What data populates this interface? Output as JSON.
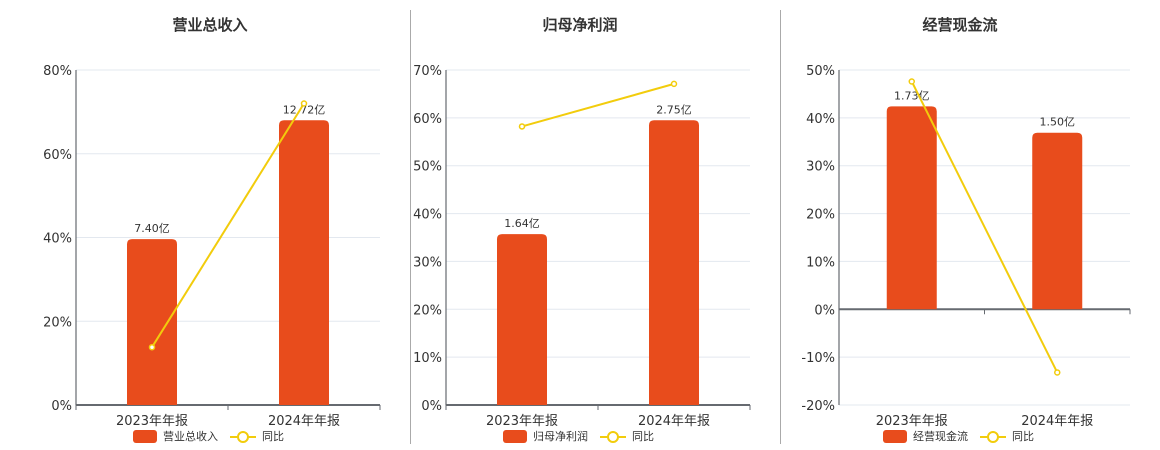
{
  "colors": {
    "bar": "#e84c1c",
    "line": "#f2cc0c",
    "grid": "#e3e8ef",
    "axis": "#666a70",
    "divider": "#aaaaaa"
  },
  "legend": {
    "yoy_label": "同比"
  },
  "categories": [
    "2023年年报",
    "2024年年报"
  ],
  "panels": [
    {
      "title": "营业总收入",
      "legend_bar_label": "营业总收入",
      "yticks": [
        "80%",
        "60%",
        "40%",
        "20%",
        "0%"
      ],
      "bar_labels": [
        "7.40亿",
        "12.72亿"
      ]
    },
    {
      "title": "归母净利润",
      "legend_bar_label": "归母净利润",
      "yticks": [
        "70%",
        "60%",
        "50%",
        "40%",
        "30%",
        "20%",
        "10%",
        "0%"
      ],
      "bar_labels": [
        "1.64亿",
        "2.75亿"
      ]
    },
    {
      "title": "经营现金流",
      "legend_bar_label": "经营现金流",
      "yticks": [
        "50%",
        "40%",
        "30%",
        "20%",
        "10%",
        "0%",
        "-10%",
        "-20%"
      ],
      "bar_labels": [
        "1.73亿",
        "1.50亿"
      ]
    }
  ],
  "chart_data": [
    {
      "type": "bar+line",
      "title": "营业总收入",
      "categories": [
        "2023年年报",
        "2024年年报"
      ],
      "series": [
        {
          "name": "营业总收入",
          "type": "bar",
          "labels": [
            "7.40亿",
            "12.72亿"
          ],
          "values_yuan_100m": [
            7.4,
            12.72
          ],
          "bar_height_pct": [
            39.6,
            68.0
          ]
        },
        {
          "name": "同比",
          "type": "line",
          "values": [
            13.8,
            72.0
          ],
          "unit": "%"
        }
      ],
      "ylim": [
        0,
        80
      ],
      "yticks": [
        0,
        20,
        40,
        60,
        80
      ],
      "ytick_format": "%",
      "grid": true,
      "legend_position": "bottom"
    },
    {
      "type": "bar+line",
      "title": "归母净利润",
      "categories": [
        "2023年年报",
        "2024年年报"
      ],
      "series": [
        {
          "name": "归母净利润",
          "type": "bar",
          "labels": [
            "1.64亿",
            "2.75亿"
          ],
          "values_yuan_100m": [
            1.64,
            2.75
          ],
          "bar_height_pct": [
            35.7,
            59.5
          ]
        },
        {
          "name": "同比",
          "type": "line",
          "values": [
            58.2,
            67.1
          ],
          "unit": "%"
        }
      ],
      "ylim": [
        0,
        70
      ],
      "yticks": [
        0,
        10,
        20,
        30,
        40,
        50,
        60,
        70
      ],
      "ytick_format": "%",
      "grid": true,
      "legend_position": "bottom"
    },
    {
      "type": "bar+line",
      "title": "经营现金流",
      "categories": [
        "2023年年报",
        "2024年年报"
      ],
      "series": [
        {
          "name": "经营现金流",
          "type": "bar",
          "labels": [
            "1.73亿",
            "1.50亿"
          ],
          "values_yuan_100m": [
            1.73,
            1.5
          ],
          "bar_height_pct": [
            42.4,
            36.9
          ]
        },
        {
          "name": "同比",
          "type": "line",
          "values": [
            47.6,
            -13.2
          ],
          "unit": "%"
        }
      ],
      "ylim": [
        -20,
        50
      ],
      "yticks": [
        -20,
        -10,
        0,
        10,
        20,
        30,
        40,
        50
      ],
      "ytick_format": "%",
      "grid": true,
      "legend_position": "bottom"
    }
  ]
}
